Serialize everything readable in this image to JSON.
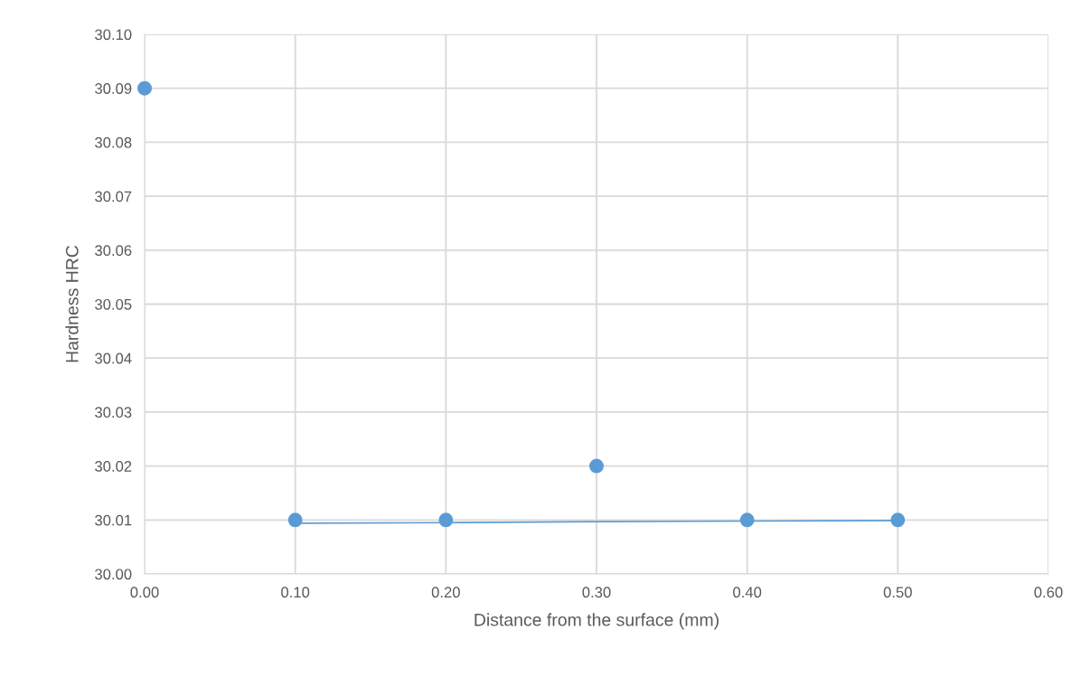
{
  "chart_data": {
    "type": "scatter",
    "xlabel": "Distance from the surface (mm)",
    "ylabel": "Hardness HRC",
    "series": [
      {
        "color": "#5b9bd5",
        "x": [
          0.0,
          0.1,
          0.2,
          0.3,
          0.4,
          0.5
        ],
        "values": [
          30.09,
          30.01,
          30.01,
          30.02,
          30.01,
          30.01
        ],
        "marker": "circle"
      },
      {
        "type": "line",
        "color": "#5b9bd5",
        "x": [
          0.1,
          0.2,
          0.3,
          0.4,
          0.5
        ],
        "values": [
          30.0094,
          30.0095,
          30.0097,
          30.0098,
          30.0099
        ],
        "marker": "none"
      }
    ],
    "xlim": [
      0,
      0.6
    ],
    "xticks": [
      {
        "value": 0,
        "label": "0.00"
      },
      {
        "value": 0.1,
        "label": "0.10"
      },
      {
        "value": 0.2,
        "label": "0.20"
      },
      {
        "value": 0.3,
        "label": "0.30"
      },
      {
        "value": 0.4,
        "label": "0.40"
      },
      {
        "value": 0.5,
        "label": "0.50"
      },
      {
        "value": 0.6,
        "label": "0.60"
      }
    ],
    "ylim": [
      30.0,
      30.1
    ],
    "yticks": [
      {
        "value": 30.0,
        "label": "30.00"
      },
      {
        "value": 30.01,
        "label": "30.01"
      },
      {
        "value": 30.02,
        "label": "30.02"
      },
      {
        "value": 30.03,
        "label": "30.03"
      },
      {
        "value": 30.04,
        "label": "30.04"
      },
      {
        "value": 30.05,
        "label": "30.05"
      },
      {
        "value": 30.06,
        "label": "30.06"
      },
      {
        "value": 30.07,
        "label": "30.07"
      },
      {
        "value": 30.08,
        "label": "30.08"
      },
      {
        "value": 30.09,
        "label": "30.09"
      },
      {
        "value": 30.1,
        "label": "30.10"
      }
    ],
    "grid": true
  }
}
